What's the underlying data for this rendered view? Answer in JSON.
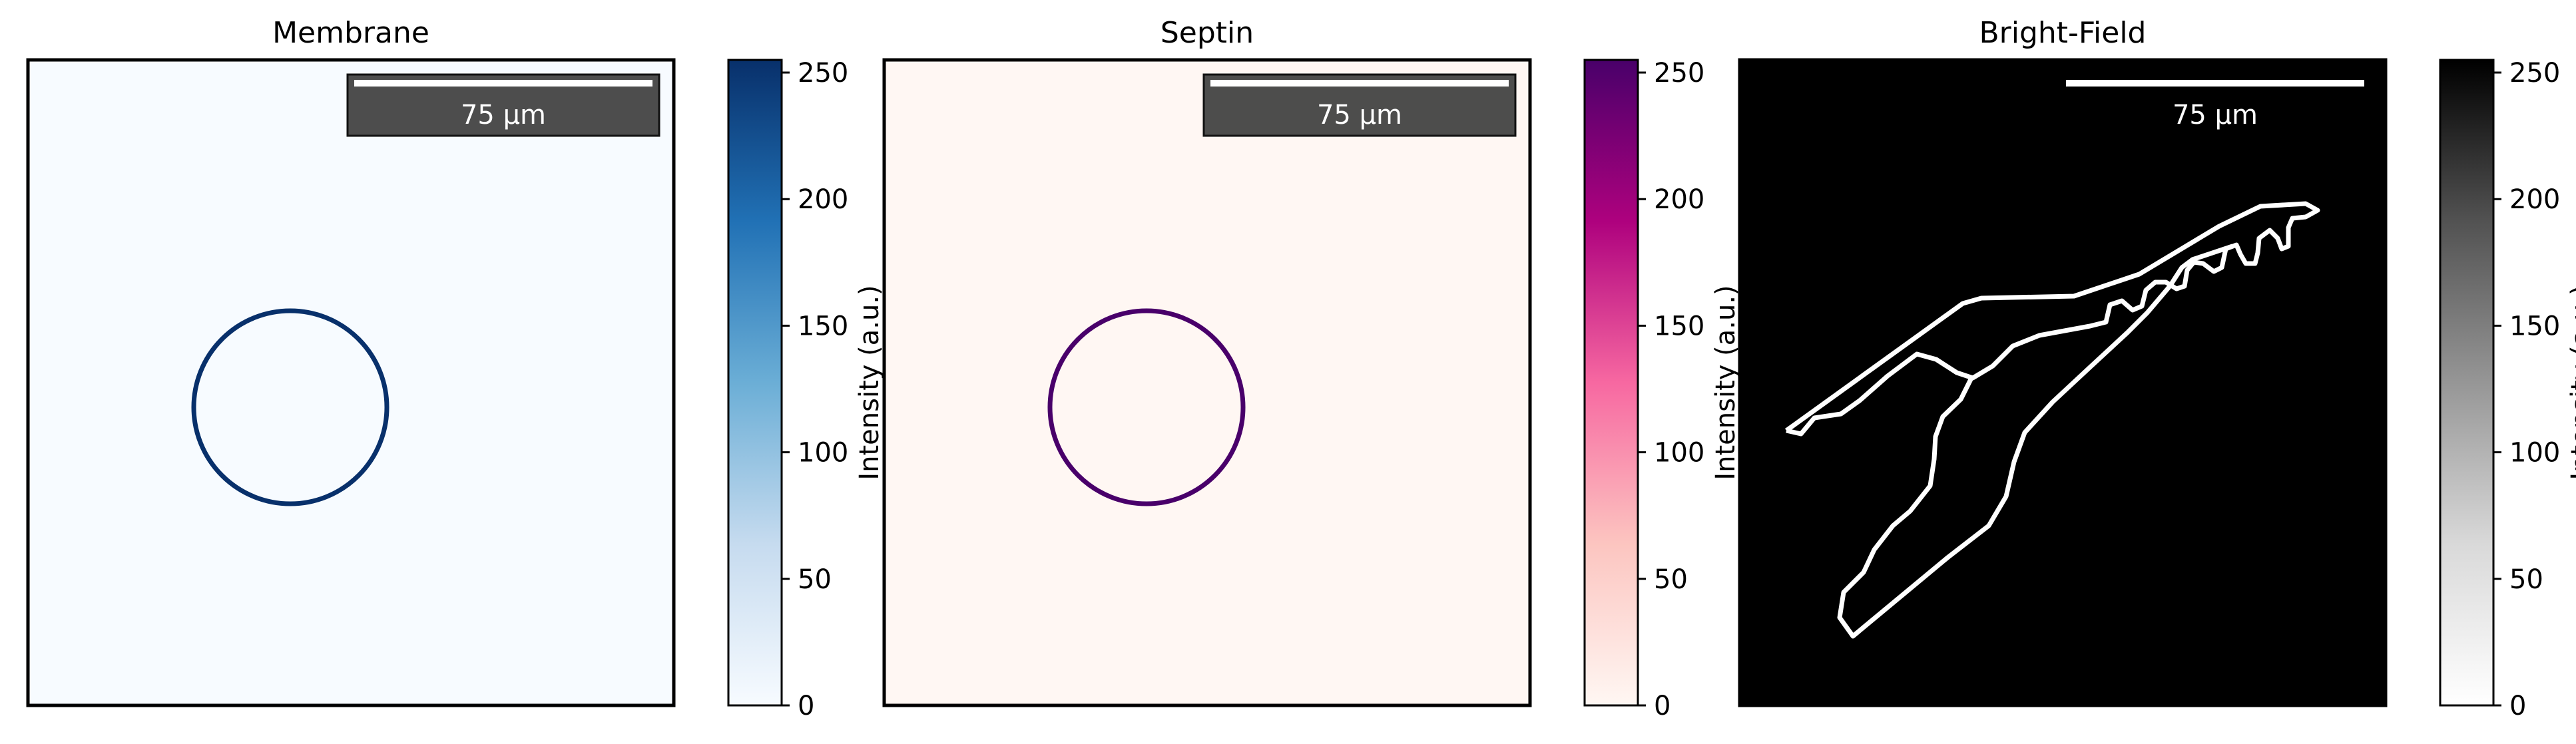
{
  "chart_data": [
    {
      "type": "heatmap",
      "title": "Membrane",
      "colormap": "Blues",
      "colormap_colors": [
        "#f7fbff",
        "#c6dbef",
        "#6baed6",
        "#2171b5",
        "#08306b"
      ],
      "colorbar": {
        "label": "Intensity (a.u.)",
        "range": [
          0,
          255
        ],
        "ticks": [
          0,
          50,
          100,
          150,
          200,
          250
        ]
      },
      "scale_bar": {
        "label": "75 µm",
        "boxed": true
      },
      "content": "ring",
      "background_value": 0,
      "object_value": 255
    },
    {
      "type": "heatmap",
      "title": "Septin",
      "colormap": "RdPu",
      "colormap_colors": [
        "#fff7f3",
        "#fcc5c0",
        "#f768a1",
        "#ae017e",
        "#49006a"
      ],
      "colorbar": {
        "label": "Intensity (a.u.)",
        "range": [
          0,
          255
        ],
        "ticks": [
          0,
          50,
          100,
          150,
          200,
          250
        ]
      },
      "scale_bar": {
        "label": "75 µm",
        "boxed": true
      },
      "content": "ring",
      "background_value": 0,
      "object_value": 255
    },
    {
      "type": "heatmap",
      "title": "Bright-Field",
      "colormap": "Greys",
      "colormap_colors": [
        "#ffffff",
        "#d9d9d9",
        "#969696",
        "#525252",
        "#000000"
      ],
      "colorbar": {
        "label": "Intensity (a.u.)",
        "range": [
          0,
          255
        ],
        "ticks": [
          0,
          50,
          100,
          150,
          200,
          250
        ]
      },
      "scale_bar": {
        "label": "75 µm",
        "boxed": false
      },
      "content": "outline",
      "background_value": 255,
      "object_value": 0
    }
  ]
}
